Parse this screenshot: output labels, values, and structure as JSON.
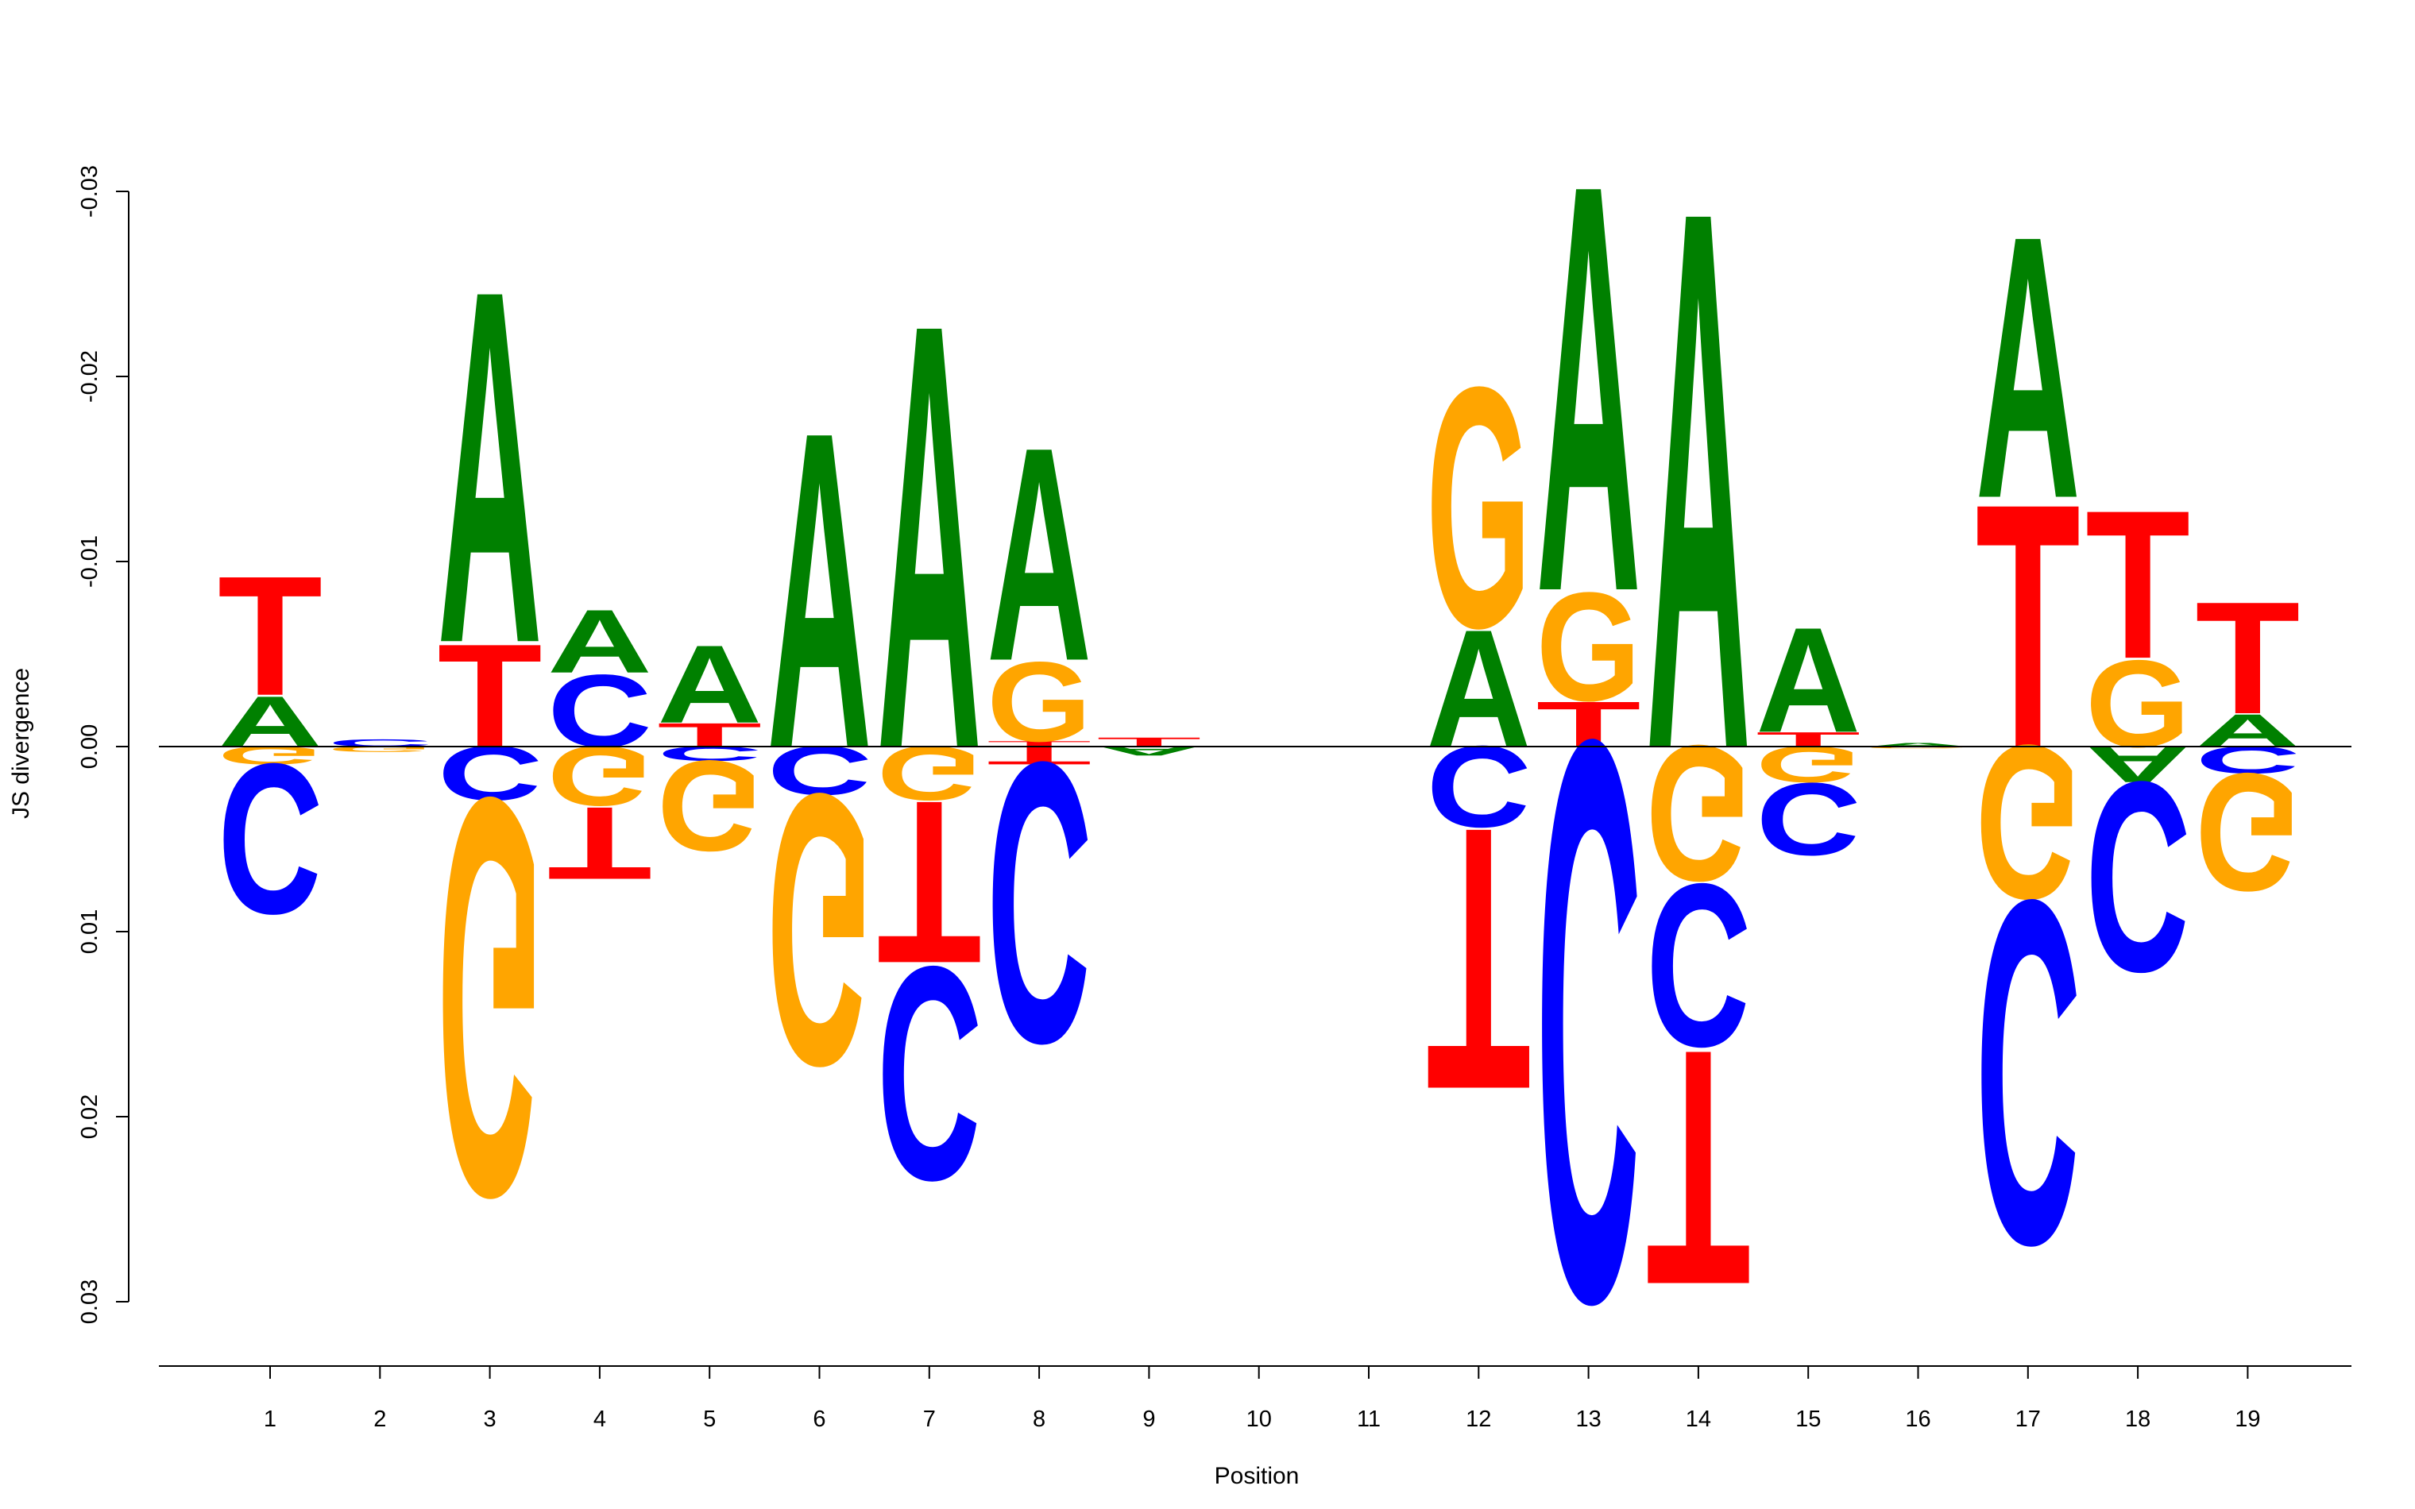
{
  "chart_data": {
    "type": "sequence-logo",
    "xlabel": "Position",
    "ylabel": "JS divergence",
    "y_tick_labels": [
      "-0.03",
      "-0.02",
      "-0.01",
      "0.00",
      "0.01",
      "0.02",
      "0.03"
    ],
    "ylim": [
      -0.031,
      0.031
    ],
    "y_axis_inverted": true,
    "positions": [
      1,
      2,
      3,
      4,
      5,
      6,
      7,
      8,
      9,
      10,
      11,
      12,
      13,
      14,
      15,
      16,
      17,
      18,
      19
    ],
    "colors": {
      "A": "#008000",
      "C": "#0000ff",
      "G": "#ffa500",
      "T": "#ff0000"
    },
    "columns": [
      {
        "position": 1,
        "above": [
          [
            "A",
            0.0028
          ],
          [
            "T",
            0.0066
          ]
        ],
        "below": [
          [
            "G",
            0.001
          ],
          [
            "C",
            0.0083
          ]
        ]
      },
      {
        "position": 2,
        "above": [
          [
            "C",
            0.0004
          ]
        ],
        "below": [
          [
            "G",
            0.0003
          ]
        ]
      },
      {
        "position": 3,
        "above": [
          [
            "T",
            0.0057
          ],
          [
            "A",
            0.0195
          ]
        ],
        "below": [
          [
            "C",
            0.003
          ],
          [
            "G",
            0.022
          ]
        ]
      },
      {
        "position": 4,
        "above": [
          [
            "C",
            0.004
          ],
          [
            "A",
            0.0035
          ]
        ],
        "below": [
          [
            "G",
            0.0033
          ],
          [
            "T",
            0.004
          ]
        ]
      },
      {
        "position": 5,
        "above": [
          [
            "T",
            0.0013
          ],
          [
            "A",
            0.0043
          ]
        ],
        "below": [
          [
            "C",
            0.0008
          ],
          [
            "G",
            0.005
          ]
        ]
      },
      {
        "position": 6,
        "above": [
          [
            "A",
            0.0175
          ]
        ],
        "below": [
          [
            "C",
            0.0027
          ],
          [
            "G",
            0.015
          ]
        ]
      },
      {
        "position": 7,
        "above": [
          [
            "A",
            0.0235
          ]
        ],
        "below": [
          [
            "G",
            0.003
          ],
          [
            "T",
            0.009
          ],
          [
            "C",
            0.0118
          ]
        ]
      },
      {
        "position": 8,
        "above": [
          [
            "T",
            0.0003
          ],
          [
            "G",
            0.0044
          ],
          [
            "A",
            0.0118
          ]
        ],
        "below": [
          [
            "T",
            0.001
          ],
          [
            "C",
            0.0155
          ]
        ]
      },
      {
        "position": 9,
        "above": [
          [
            "T",
            0.0005
          ]
        ],
        "below": [
          [
            "A",
            0.0005
          ]
        ]
      },
      {
        "position": 10,
        "above": [],
        "below": []
      },
      {
        "position": 11,
        "above": [],
        "below": []
      },
      {
        "position": 12,
        "above": [
          [
            "A",
            0.0065
          ],
          [
            "G",
            0.0133
          ]
        ],
        "below": [
          [
            "C",
            0.0045
          ],
          [
            "T",
            0.0145
          ]
        ]
      },
      {
        "position": 13,
        "above": [
          [
            "T",
            0.0025
          ],
          [
            "G",
            0.006
          ],
          [
            "A",
            0.0225
          ]
        ],
        "below": [
          [
            "C",
            0.031
          ]
        ]
      },
      {
        "position": 14,
        "above": [
          [
            "A",
            0.0298
          ]
        ],
        "below": [
          [
            "G",
            0.0075
          ],
          [
            "C",
            0.009
          ],
          [
            "T",
            0.013
          ]
        ]
      },
      {
        "position": 15,
        "above": [
          [
            "T",
            0.0008
          ],
          [
            "A",
            0.0058
          ]
        ],
        "below": [
          [
            "G",
            0.002
          ],
          [
            "C",
            0.004
          ]
        ]
      },
      {
        "position": 16,
        "above": [
          [
            "A",
            0.0002
          ]
        ],
        "below": [
          [
            "G",
            0.0001
          ]
        ]
      },
      {
        "position": 17,
        "above": [
          [
            "T",
            0.0135
          ],
          [
            "A",
            0.0145
          ]
        ],
        "below": [
          [
            "G",
            0.0085
          ],
          [
            "C",
            0.019
          ]
        ]
      },
      {
        "position": 18,
        "above": [
          [
            "G",
            0.0048
          ],
          [
            "T",
            0.0082
          ]
        ],
        "below": [
          [
            "A",
            0.002
          ],
          [
            "C",
            0.0105
          ]
        ]
      },
      {
        "position": 19,
        "above": [
          [
            "A",
            0.0018
          ],
          [
            "T",
            0.0062
          ]
        ],
        "below": [
          [
            "C",
            0.0015
          ],
          [
            "G",
            0.0065
          ]
        ]
      }
    ]
  }
}
